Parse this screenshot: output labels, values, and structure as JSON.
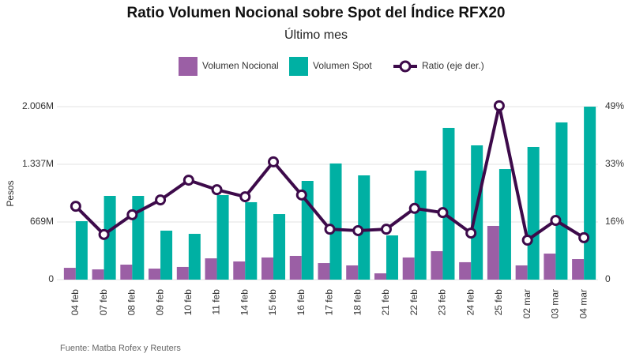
{
  "chart_data": {
    "type": "bar_line",
    "title": "Ratio Volumen Nocional sobre Spot del Índice RFX20",
    "subtitle": "Último mes",
    "y_label": "Pesos",
    "source": "Fuente: Matba Rofex y Reuters",
    "categories": [
      "04 feb",
      "07 feb",
      "08 feb",
      "09 feb",
      "10 feb",
      "11 feb",
      "14 feb",
      "15 feb",
      "16 feb",
      "17 feb",
      "18 feb",
      "21 feb",
      "22 feb",
      "23 feb",
      "24 feb",
      "25 feb",
      "02 mar",
      "03 mar",
      "04 mar"
    ],
    "series": [
      {
        "name": "Volumen Nocional",
        "color": "#9b5fa5",
        "type": "bar",
        "values": [
          137,
          119,
          174,
          128,
          147,
          247,
          211,
          257,
          275,
          192,
          165,
          73,
          257,
          330,
          202,
          623,
          165,
          302,
          238
        ]
      },
      {
        "name": "Volumen Spot",
        "color": "#00b0a3",
        "type": "bar",
        "values": [
          678,
          971,
          971,
          568,
          531,
          980,
          898,
          760,
          1145,
          1347,
          1209,
          513,
          1264,
          1759,
          1557,
          1282,
          1539,
          1823,
          2006
        ]
      },
      {
        "name": "Ratio (eje der.)",
        "color": "#3d0a4a",
        "type": "line",
        "axis": "y2",
        "values": [
          20.8,
          12.8,
          18.4,
          22.6,
          28.2,
          25.5,
          23.5,
          33.4,
          24.0,
          14.3,
          13.9,
          14.3,
          20.2,
          19.0,
          13.2,
          49.3,
          11.2,
          16.8,
          11.9
        ]
      }
    ],
    "ylim": [
      0,
      2006
    ],
    "yticks": [
      0,
      {
        "value": 669,
        "label": "669M"
      },
      {
        "value": 1337,
        "label": "1.337M"
      },
      {
        "value": 2006,
        "label": "2.006M"
      }
    ],
    "y2lim": [
      0,
      49.05
    ],
    "y2ticks": [
      0,
      {
        "value": 16.35,
        "label": "16%"
      },
      {
        "value": 32.7,
        "label": "33%"
      },
      {
        "value": 49.05,
        "label": "49%"
      }
    ],
    "grid": true
  }
}
